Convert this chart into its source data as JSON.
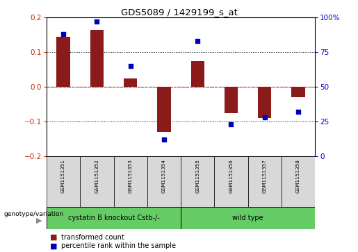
{
  "title": "GDS5089 / 1429199_s_at",
  "samples": [
    "GSM1151351",
    "GSM1151352",
    "GSM1151353",
    "GSM1151354",
    "GSM1151355",
    "GSM1151356",
    "GSM1151357",
    "GSM1151358"
  ],
  "transformed_count": [
    0.145,
    0.165,
    0.025,
    -0.13,
    0.075,
    -0.075,
    -0.09,
    -0.03
  ],
  "percentile_rank": [
    88,
    97,
    65,
    12,
    83,
    23,
    28,
    32
  ],
  "groups": [
    {
      "label": "cystatin B knockout Cstb-/-",
      "start": 0,
      "end": 4,
      "color": "#66cc66"
    },
    {
      "label": "wild type",
      "start": 4,
      "end": 8,
      "color": "#66cc66"
    }
  ],
  "left_axis_color": "#cc2200",
  "right_axis_color": "#0000cc",
  "bar_color": "#8b1a1a",
  "dot_color": "#0000bb",
  "ylim_left": [
    -0.2,
    0.2
  ],
  "ylim_right": [
    0,
    100
  ],
  "yticks_left": [
    -0.2,
    -0.1,
    0.0,
    0.1,
    0.2
  ],
  "yticks_right": [
    0,
    25,
    50,
    75,
    100
  ],
  "legend_tc": "transformed count",
  "legend_pr": "percentile rank within the sample",
  "genotype_label": "genotype/variation",
  "sample_bg": "#d8d8d8",
  "bar_width": 0.4
}
